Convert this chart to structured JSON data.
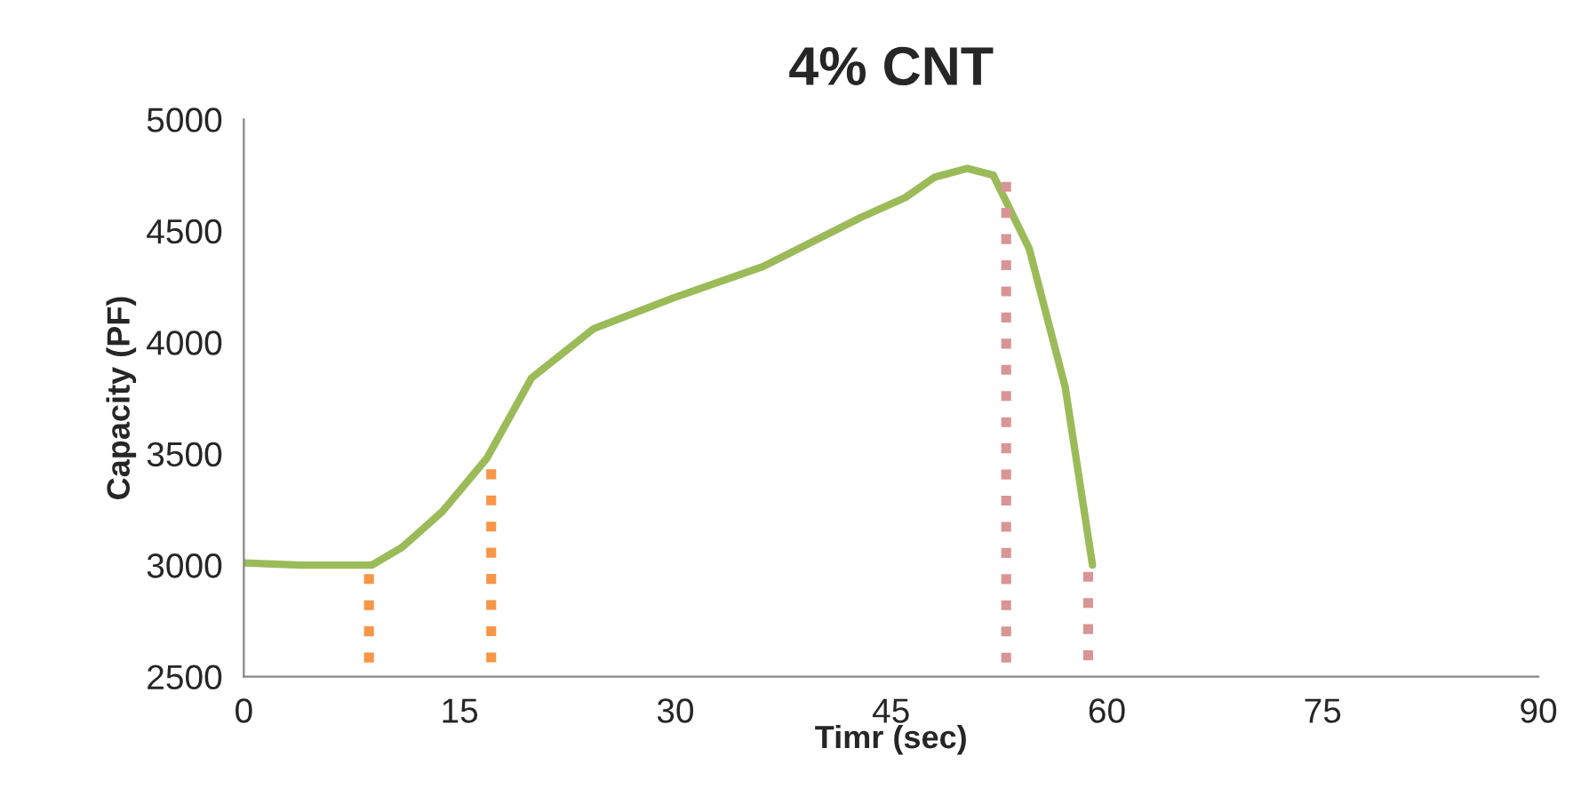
{
  "chart_data": {
    "type": "line",
    "title": "4% CNT",
    "xlabel": "Timr (sec)",
    "ylabel": "Capacity (PF)",
    "xlim": [
      0,
      90
    ],
    "xticks": [
      0,
      15,
      30,
      45,
      60,
      75,
      90
    ],
    "ylim": [
      2500,
      5000
    ],
    "yticks": [
      2500,
      3000,
      3500,
      4000,
      4500,
      5000
    ],
    "grid": false,
    "legend": false,
    "marker": "none",
    "series": [
      {
        "color": "#9bbb59",
        "line_style": "solid",
        "x": [
          0,
          4,
          8.9,
          11,
          13.8,
          16.9,
          20,
          24.3,
          29.9,
          36.1,
          42.9,
          46,
          48,
          50.3,
          52.1,
          54.6,
          57.1,
          59
        ],
        "values": [
          3010,
          3000,
          3000,
          3080,
          3240,
          3480,
          3840,
          4060,
          4200,
          4340,
          4560,
          4650,
          4740,
          4780,
          4750,
          4420,
          3800,
          3000
        ]
      },
      {
        "color": "#f79646",
        "line_style": "dotted",
        "x": [
          8.7,
          8.7
        ],
        "values": [
          2960,
          2500
        ]
      },
      {
        "color": "#f79646",
        "line_style": "dotted",
        "x": [
          17.2,
          17.2
        ],
        "values": [
          3430,
          2500
        ]
      },
      {
        "color": "#d99594",
        "line_style": "dotted",
        "x": [
          53,
          53
        ],
        "values": [
          4720,
          2500
        ]
      },
      {
        "color": "#d99594",
        "line_style": "dotted",
        "x": [
          58.7,
          58.7
        ],
        "values": [
          2970,
          2500
        ]
      }
    ]
  }
}
